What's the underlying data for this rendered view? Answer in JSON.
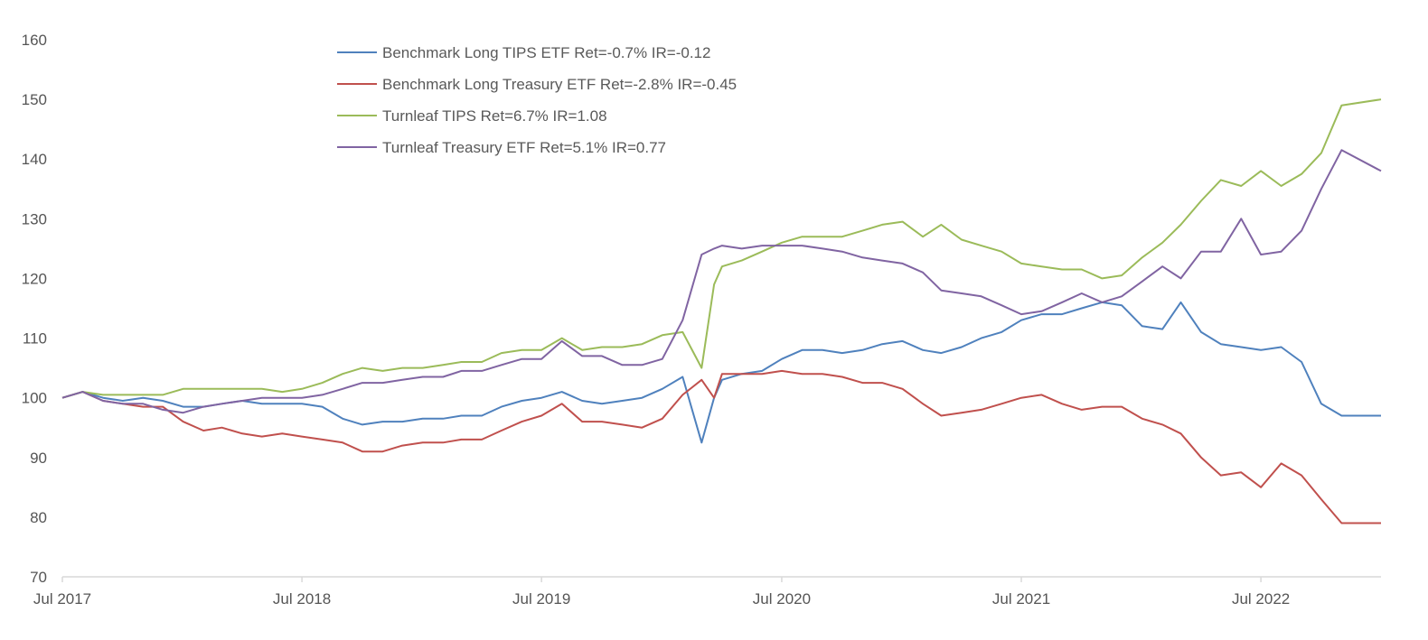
{
  "chart_data": {
    "type": "line",
    "title": "",
    "xlabel": "",
    "ylabel": "",
    "ylim": [
      70,
      160
    ],
    "yticks": [
      70,
      80,
      90,
      100,
      110,
      120,
      130,
      140,
      150,
      160
    ],
    "xlim": [
      "2017-07-01",
      "2022-12-31"
    ],
    "xticks": [
      {
        "date": "2017-07-01",
        "label": "Jul 2017"
      },
      {
        "date": "2018-07-01",
        "label": "Jul 2018"
      },
      {
        "date": "2019-07-01",
        "label": "Jul 2019"
      },
      {
        "date": "2020-07-01",
        "label": "Jul 2020"
      },
      {
        "date": "2021-07-01",
        "label": "Jul 2021"
      },
      {
        "date": "2022-07-01",
        "label": "Jul 2022"
      }
    ],
    "grid": false,
    "legend_position": "top-left",
    "series": [
      {
        "name": "Benchmark Long TIPS ETF Ret=-0.7% IR=-0.12",
        "color": "#4f81bd",
        "points": [
          [
            "2017-07-01",
            100
          ],
          [
            "2017-08-01",
            101
          ],
          [
            "2017-09-01",
            100
          ],
          [
            "2017-10-01",
            99.5
          ],
          [
            "2017-11-01",
            100
          ],
          [
            "2017-12-01",
            99.5
          ],
          [
            "2018-01-01",
            98.5
          ],
          [
            "2018-02-01",
            98.5
          ],
          [
            "2018-03-01",
            99
          ],
          [
            "2018-04-01",
            99.5
          ],
          [
            "2018-05-01",
            99
          ],
          [
            "2018-06-01",
            99
          ],
          [
            "2018-07-01",
            99
          ],
          [
            "2018-08-01",
            98.5
          ],
          [
            "2018-09-01",
            96.5
          ],
          [
            "2018-10-01",
            95.5
          ],
          [
            "2018-11-01",
            96
          ],
          [
            "2018-12-01",
            96
          ],
          [
            "2019-01-01",
            96.5
          ],
          [
            "2019-02-01",
            96.5
          ],
          [
            "2019-03-01",
            97
          ],
          [
            "2019-04-01",
            97
          ],
          [
            "2019-05-01",
            98.5
          ],
          [
            "2019-06-01",
            99.5
          ],
          [
            "2019-07-01",
            100
          ],
          [
            "2019-08-01",
            101
          ],
          [
            "2019-09-01",
            99.5
          ],
          [
            "2019-10-01",
            99
          ],
          [
            "2019-11-01",
            99.5
          ],
          [
            "2019-12-01",
            100
          ],
          [
            "2020-01-01",
            101.5
          ],
          [
            "2020-02-01",
            103.5
          ],
          [
            "2020-03-01",
            92.5
          ],
          [
            "2020-03-20",
            100
          ],
          [
            "2020-04-01",
            103
          ],
          [
            "2020-05-01",
            104
          ],
          [
            "2020-06-01",
            104.5
          ],
          [
            "2020-07-01",
            106.5
          ],
          [
            "2020-08-01",
            108
          ],
          [
            "2020-09-01",
            108
          ],
          [
            "2020-10-01",
            107.5
          ],
          [
            "2020-11-01",
            108
          ],
          [
            "2020-12-01",
            109
          ],
          [
            "2021-01-01",
            109.5
          ],
          [
            "2021-02-01",
            108
          ],
          [
            "2021-03-01",
            107.5
          ],
          [
            "2021-04-01",
            108.5
          ],
          [
            "2021-05-01",
            110
          ],
          [
            "2021-06-01",
            111
          ],
          [
            "2021-07-01",
            113
          ],
          [
            "2021-08-01",
            114
          ],
          [
            "2021-09-01",
            114
          ],
          [
            "2021-10-01",
            115
          ],
          [
            "2021-11-01",
            116
          ],
          [
            "2021-12-01",
            115.5
          ],
          [
            "2022-01-01",
            112
          ],
          [
            "2022-02-01",
            111.5
          ],
          [
            "2022-03-01",
            116
          ],
          [
            "2022-04-01",
            111
          ],
          [
            "2022-05-01",
            109
          ],
          [
            "2022-06-01",
            108.5
          ],
          [
            "2022-07-01",
            108
          ],
          [
            "2022-08-01",
            108.5
          ],
          [
            "2022-09-01",
            106
          ],
          [
            "2022-10-01",
            99
          ],
          [
            "2022-11-01",
            97
          ],
          [
            "2022-12-31",
            97
          ]
        ]
      },
      {
        "name": "Benchmark Long Treasury ETF Ret=-2.8% IR=-0.45",
        "color": "#c0504d",
        "points": [
          [
            "2017-07-01",
            100
          ],
          [
            "2017-08-01",
            101
          ],
          [
            "2017-09-01",
            99.5
          ],
          [
            "2017-10-01",
            99
          ],
          [
            "2017-11-01",
            98.5
          ],
          [
            "2017-12-01",
            98.5
          ],
          [
            "2018-01-01",
            96
          ],
          [
            "2018-02-01",
            94.5
          ],
          [
            "2018-03-01",
            95
          ],
          [
            "2018-04-01",
            94
          ],
          [
            "2018-05-01",
            93.5
          ],
          [
            "2018-06-01",
            94
          ],
          [
            "2018-07-01",
            93.5
          ],
          [
            "2018-08-01",
            93
          ],
          [
            "2018-09-01",
            92.5
          ],
          [
            "2018-10-01",
            91
          ],
          [
            "2018-11-01",
            91
          ],
          [
            "2018-12-01",
            92
          ],
          [
            "2019-01-01",
            92.5
          ],
          [
            "2019-02-01",
            92.5
          ],
          [
            "2019-03-01",
            93
          ],
          [
            "2019-04-01",
            93
          ],
          [
            "2019-05-01",
            94.5
          ],
          [
            "2019-06-01",
            96
          ],
          [
            "2019-07-01",
            97
          ],
          [
            "2019-08-01",
            99
          ],
          [
            "2019-09-01",
            96
          ],
          [
            "2019-10-01",
            96
          ],
          [
            "2019-11-01",
            95.5
          ],
          [
            "2019-12-01",
            95
          ],
          [
            "2020-01-01",
            96.5
          ],
          [
            "2020-02-01",
            100.5
          ],
          [
            "2020-03-01",
            103
          ],
          [
            "2020-03-20",
            100
          ],
          [
            "2020-04-01",
            104
          ],
          [
            "2020-05-01",
            104
          ],
          [
            "2020-06-01",
            104
          ],
          [
            "2020-07-01",
            104.5
          ],
          [
            "2020-08-01",
            104
          ],
          [
            "2020-09-01",
            104
          ],
          [
            "2020-10-01",
            103.5
          ],
          [
            "2020-11-01",
            102.5
          ],
          [
            "2020-12-01",
            102.5
          ],
          [
            "2021-01-01",
            101.5
          ],
          [
            "2021-02-01",
            99
          ],
          [
            "2021-03-01",
            97
          ],
          [
            "2021-04-01",
            97.5
          ],
          [
            "2021-05-01",
            98
          ],
          [
            "2021-06-01",
            99
          ],
          [
            "2021-07-01",
            100
          ],
          [
            "2021-08-01",
            100.5
          ],
          [
            "2021-09-01",
            99
          ],
          [
            "2021-10-01",
            98
          ],
          [
            "2021-11-01",
            98.5
          ],
          [
            "2021-12-01",
            98.5
          ],
          [
            "2022-01-01",
            96.5
          ],
          [
            "2022-02-01",
            95.5
          ],
          [
            "2022-03-01",
            94
          ],
          [
            "2022-04-01",
            90
          ],
          [
            "2022-05-01",
            87
          ],
          [
            "2022-06-01",
            87.5
          ],
          [
            "2022-07-01",
            85
          ],
          [
            "2022-08-01",
            89
          ],
          [
            "2022-09-01",
            87
          ],
          [
            "2022-10-01",
            83
          ],
          [
            "2022-11-01",
            79
          ],
          [
            "2022-12-31",
            79
          ]
        ]
      },
      {
        "name": "Turnleaf TIPS Ret=6.7% IR=1.08",
        "color": "#9bbb59",
        "points": [
          [
            "2017-07-01",
            100
          ],
          [
            "2017-08-01",
            101
          ],
          [
            "2017-09-01",
            100.5
          ],
          [
            "2017-10-01",
            100.5
          ],
          [
            "2017-11-01",
            100.5
          ],
          [
            "2017-12-01",
            100.5
          ],
          [
            "2018-01-01",
            101.5
          ],
          [
            "2018-02-01",
            101.5
          ],
          [
            "2018-03-01",
            101.5
          ],
          [
            "2018-04-01",
            101.5
          ],
          [
            "2018-05-01",
            101.5
          ],
          [
            "2018-06-01",
            101
          ],
          [
            "2018-07-01",
            101.5
          ],
          [
            "2018-08-01",
            102.5
          ],
          [
            "2018-09-01",
            104
          ],
          [
            "2018-10-01",
            105
          ],
          [
            "2018-11-01",
            104.5
          ],
          [
            "2018-12-01",
            105
          ],
          [
            "2019-01-01",
            105
          ],
          [
            "2019-02-01",
            105.5
          ],
          [
            "2019-03-01",
            106
          ],
          [
            "2019-04-01",
            106
          ],
          [
            "2019-05-01",
            107.5
          ],
          [
            "2019-06-01",
            108
          ],
          [
            "2019-07-01",
            108
          ],
          [
            "2019-08-01",
            110
          ],
          [
            "2019-09-01",
            108
          ],
          [
            "2019-10-01",
            108.5
          ],
          [
            "2019-11-01",
            108.5
          ],
          [
            "2019-12-01",
            109
          ],
          [
            "2020-01-01",
            110.5
          ],
          [
            "2020-02-01",
            111
          ],
          [
            "2020-03-01",
            105
          ],
          [
            "2020-03-20",
            119
          ],
          [
            "2020-04-01",
            122
          ],
          [
            "2020-05-01",
            123
          ],
          [
            "2020-06-01",
            124.5
          ],
          [
            "2020-07-01",
            126
          ],
          [
            "2020-08-01",
            127
          ],
          [
            "2020-09-01",
            127
          ],
          [
            "2020-10-01",
            127
          ],
          [
            "2020-11-01",
            128
          ],
          [
            "2020-12-01",
            129
          ],
          [
            "2021-01-01",
            129.5
          ],
          [
            "2021-02-01",
            127
          ],
          [
            "2021-03-01",
            129
          ],
          [
            "2021-04-01",
            126.5
          ],
          [
            "2021-05-01",
            125.5
          ],
          [
            "2021-06-01",
            124.5
          ],
          [
            "2021-07-01",
            122.5
          ],
          [
            "2021-08-01",
            122
          ],
          [
            "2021-09-01",
            121.5
          ],
          [
            "2021-10-01",
            121.5
          ],
          [
            "2021-11-01",
            120
          ],
          [
            "2021-12-01",
            120.5
          ],
          [
            "2022-01-01",
            123.5
          ],
          [
            "2022-02-01",
            126
          ],
          [
            "2022-03-01",
            129
          ],
          [
            "2022-04-01",
            133
          ],
          [
            "2022-05-01",
            136.5
          ],
          [
            "2022-06-01",
            135.5
          ],
          [
            "2022-07-01",
            138
          ],
          [
            "2022-08-01",
            135.5
          ],
          [
            "2022-09-01",
            137.5
          ],
          [
            "2022-10-01",
            141
          ],
          [
            "2022-11-01",
            149
          ],
          [
            "2022-12-31",
            150
          ]
        ]
      },
      {
        "name": "Turnleaf Treasury ETF Ret=5.1% IR=0.77",
        "color": "#8064a2",
        "points": [
          [
            "2017-07-01",
            100
          ],
          [
            "2017-08-01",
            101
          ],
          [
            "2017-09-01",
            99.5
          ],
          [
            "2017-10-01",
            99
          ],
          [
            "2017-11-01",
            99
          ],
          [
            "2017-12-01",
            98
          ],
          [
            "2018-01-01",
            97.5
          ],
          [
            "2018-02-01",
            98.5
          ],
          [
            "2018-03-01",
            99
          ],
          [
            "2018-04-01",
            99.5
          ],
          [
            "2018-05-01",
            100
          ],
          [
            "2018-06-01",
            100
          ],
          [
            "2018-07-01",
            100
          ],
          [
            "2018-08-01",
            100.5
          ],
          [
            "2018-09-01",
            101.5
          ],
          [
            "2018-10-01",
            102.5
          ],
          [
            "2018-11-01",
            102.5
          ],
          [
            "2018-12-01",
            103
          ],
          [
            "2019-01-01",
            103.5
          ],
          [
            "2019-02-01",
            103.5
          ],
          [
            "2019-03-01",
            104.5
          ],
          [
            "2019-04-01",
            104.5
          ],
          [
            "2019-05-01",
            105.5
          ],
          [
            "2019-06-01",
            106.5
          ],
          [
            "2019-07-01",
            106.5
          ],
          [
            "2019-08-01",
            109.5
          ],
          [
            "2019-09-01",
            107
          ],
          [
            "2019-10-01",
            107
          ],
          [
            "2019-11-01",
            105.5
          ],
          [
            "2019-12-01",
            105.5
          ],
          [
            "2020-01-01",
            106.5
          ],
          [
            "2020-02-01",
            113
          ],
          [
            "2020-03-01",
            124
          ],
          [
            "2020-03-20",
            125
          ],
          [
            "2020-04-01",
            125.5
          ],
          [
            "2020-05-01",
            125
          ],
          [
            "2020-06-01",
            125.5
          ],
          [
            "2020-07-01",
            125.5
          ],
          [
            "2020-08-01",
            125.5
          ],
          [
            "2020-09-01",
            125
          ],
          [
            "2020-10-01",
            124.5
          ],
          [
            "2020-11-01",
            123.5
          ],
          [
            "2020-12-01",
            123
          ],
          [
            "2021-01-01",
            122.5
          ],
          [
            "2021-02-01",
            121
          ],
          [
            "2021-03-01",
            118
          ],
          [
            "2021-04-01",
            117.5
          ],
          [
            "2021-05-01",
            117
          ],
          [
            "2021-06-01",
            115.5
          ],
          [
            "2021-07-01",
            114
          ],
          [
            "2021-08-01",
            114.5
          ],
          [
            "2021-09-01",
            116
          ],
          [
            "2021-10-01",
            117.5
          ],
          [
            "2021-11-01",
            116
          ],
          [
            "2021-12-01",
            117
          ],
          [
            "2022-01-01",
            119.5
          ],
          [
            "2022-02-01",
            122
          ],
          [
            "2022-03-01",
            120
          ],
          [
            "2022-04-01",
            124.5
          ],
          [
            "2022-05-01",
            124.5
          ],
          [
            "2022-06-01",
            130
          ],
          [
            "2022-07-01",
            124
          ],
          [
            "2022-08-01",
            124.5
          ],
          [
            "2022-09-01",
            128
          ],
          [
            "2022-10-01",
            135
          ],
          [
            "2022-11-01",
            141.5
          ],
          [
            "2022-12-31",
            138
          ]
        ]
      }
    ]
  }
}
